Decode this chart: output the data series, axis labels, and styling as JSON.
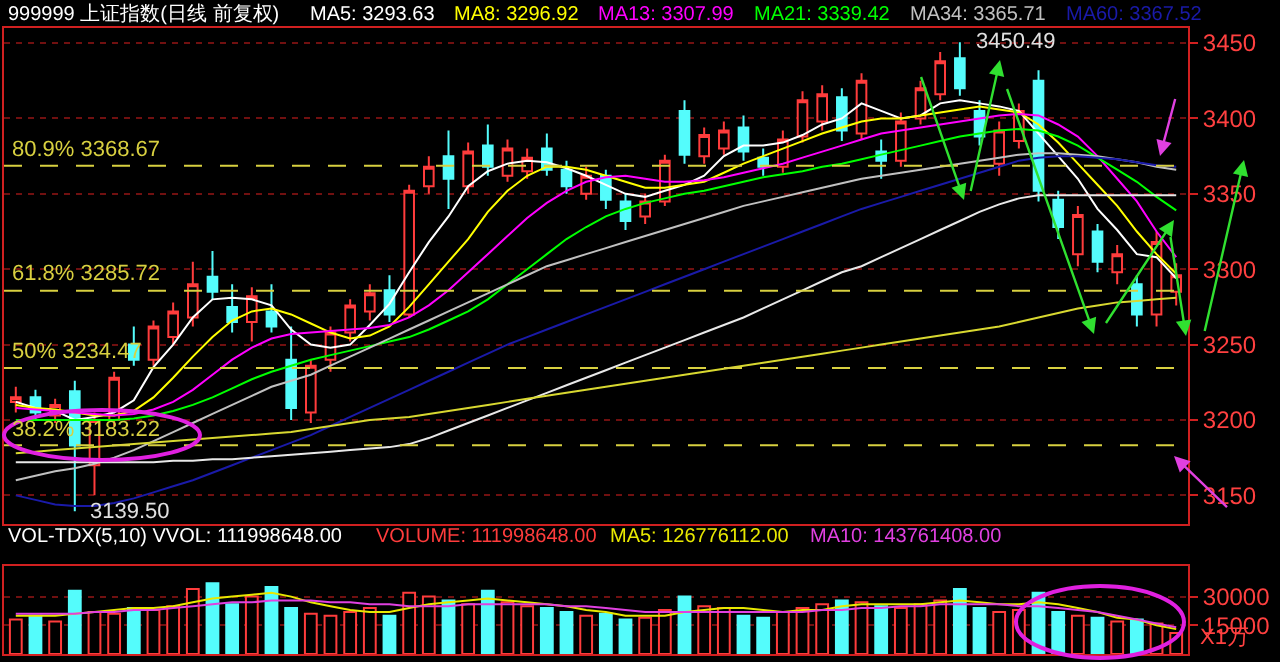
{
  "chart_data": [
    {
      "type": "candlestick",
      "title": "999999 上证指数(日线 前复权)",
      "categories": [
        null,
        null,
        null,
        null,
        null,
        null,
        null,
        null,
        null,
        null,
        null,
        null,
        null,
        null,
        null,
        null,
        null,
        null,
        null,
        null,
        null,
        null,
        null,
        null,
        null,
        null,
        null,
        null,
        null,
        null,
        null,
        null,
        null,
        null,
        null,
        null,
        null,
        null,
        null,
        null,
        null,
        null,
        null,
        null,
        null,
        null,
        null,
        null,
        null,
        null,
        null,
        null,
        null,
        null,
        null,
        null,
        null,
        null,
        null,
        null
      ],
      "ohlc": [
        [
          3212,
          3222,
          3205,
          3215
        ],
        [
          3215,
          3220,
          3200,
          3205
        ],
        [
          3203,
          3214,
          3198,
          3210
        ],
        [
          3219,
          3226,
          3139.5,
          3183
        ],
        [
          3170,
          3205,
          3150,
          3200
        ],
        [
          3200,
          3232,
          3196,
          3228
        ],
        [
          3250,
          3262,
          3236,
          3240
        ],
        [
          3240,
          3266,
          3236,
          3262
        ],
        [
          3255,
          3278,
          3250,
          3272
        ],
        [
          3268,
          3305,
          3262,
          3290
        ],
        [
          3295,
          3312,
          3280,
          3285
        ],
        [
          3275,
          3290,
          3258,
          3265
        ],
        [
          3265,
          3288,
          3252,
          3282
        ],
        [
          3272,
          3290,
          3258,
          3262
        ],
        [
          3240,
          3262,
          3200,
          3208
        ],
        [
          3205,
          3240,
          3198,
          3236
        ],
        [
          3240,
          3262,
          3232,
          3258
        ],
        [
          3258,
          3280,
          3252,
          3276
        ],
        [
          3272,
          3290,
          3266,
          3284
        ],
        [
          3286,
          3296,
          3265,
          3270
        ],
        [
          3270,
          3356,
          3268,
          3352
        ],
        [
          3355,
          3375,
          3350,
          3368
        ],
        [
          3375,
          3392,
          3340,
          3360
        ],
        [
          3355,
          3384,
          3350,
          3378
        ],
        [
          3382,
          3396,
          3362,
          3368
        ],
        [
          3362,
          3386,
          3358,
          3380
        ],
        [
          3365,
          3380,
          3360,
          3374
        ],
        [
          3380,
          3390,
          3362,
          3366
        ],
        [
          3366,
          3372,
          3350,
          3355
        ],
        [
          3350,
          3368,
          3346,
          3362
        ],
        [
          3362,
          3366,
          3340,
          3346
        ],
        [
          3345,
          3350,
          3326,
          3332
        ],
        [
          3335,
          3350,
          3330,
          3345
        ],
        [
          3345,
          3376,
          3342,
          3372
        ],
        [
          3405,
          3412,
          3370,
          3376
        ],
        [
          3375,
          3394,
          3370,
          3389
        ],
        [
          3380,
          3398,
          3376,
          3392
        ],
        [
          3394,
          3402,
          3372,
          3378
        ],
        [
          3374,
          3380,
          3362,
          3368
        ],
        [
          3368,
          3392,
          3364,
          3386
        ],
        [
          3388,
          3418,
          3384,
          3412
        ],
        [
          3398,
          3422,
          3392,
          3416
        ],
        [
          3414,
          3420,
          3385,
          3392
        ],
        [
          3390,
          3430,
          3386,
          3425
        ],
        [
          3378,
          3386,
          3360,
          3372
        ],
        [
          3372,
          3404,
          3368,
          3398
        ],
        [
          3400,
          3425,
          3396,
          3420
        ],
        [
          3416,
          3444,
          3412,
          3438
        ],
        [
          3440,
          3450.49,
          3415,
          3420
        ],
        [
          3405,
          3412,
          3382,
          3388
        ],
        [
          3370,
          3398,
          3362,
          3392
        ],
        [
          3385,
          3410,
          3380,
          3405
        ],
        [
          3425,
          3432,
          3345,
          3352
        ],
        [
          3346,
          3352,
          3320,
          3328
        ],
        [
          3310,
          3342,
          3302,
          3336
        ],
        [
          3325,
          3330,
          3298,
          3305
        ],
        [
          3298,
          3316,
          3290,
          3310
        ],
        [
          3290,
          3296,
          3262,
          3270
        ],
        [
          3270,
          3325,
          3262,
          3318
        ],
        [
          3285,
          3304,
          3276,
          3296
        ]
      ],
      "colors": [
        "#ff3c3c",
        "#54fcfc",
        "#ff3c3c",
        "#54fcfc",
        "#ff3c3c",
        "#ff3c3c",
        "#54fcfc",
        "#ff3c3c",
        "#ff3c3c",
        "#ff3c3c",
        "#54fcfc",
        "#54fcfc",
        "#ff3c3c",
        "#54fcfc",
        "#54fcfc",
        "#ff3c3c",
        "#ff3c3c",
        "#ff3c3c",
        "#ff3c3c",
        "#54fcfc",
        "#ff3c3c",
        "#ff3c3c",
        "#54fcfc",
        "#ff3c3c",
        "#54fcfc",
        "#ff3c3c",
        "#ff3c3c",
        "#54fcfc",
        "#54fcfc",
        "#ff3c3c",
        "#54fcfc",
        "#54fcfc",
        "#ff3c3c",
        "#ff3c3c",
        "#54fcfc",
        "#ff3c3c",
        "#ff3c3c",
        "#54fcfc",
        "#54fcfc",
        "#ff3c3c",
        "#ff3c3c",
        "#ff3c3c",
        "#54fcfc",
        "#ff3c3c",
        "#54fcfc",
        "#ff3c3c",
        "#ff3c3c",
        "#ff3c3c",
        "#54fcfc",
        "#54fcfc",
        "#ff3c3c",
        "#ff3c3c",
        "#54fcfc",
        "#54fcfc",
        "#ff3c3c",
        "#54fcfc",
        "#ff3c3c",
        "#54fcfc",
        "#ff3c3c",
        "#ff3c3c"
      ],
      "series": [
        {
          "name": "MA5: 3293.63",
          "type": "line",
          "color": "#ffffff",
          "values": [
            3212,
            3208,
            3206,
            3200,
            3202,
            3205,
            3213,
            3235,
            3250,
            3268,
            3280,
            3281,
            3280,
            3276,
            3260,
            3250,
            3248,
            3250,
            3263,
            3277,
            3298,
            3318,
            3335,
            3355,
            3365,
            3370,
            3372,
            3371,
            3367,
            3362,
            3356,
            3350,
            3348,
            3352,
            3356,
            3362,
            3375,
            3382,
            3382,
            3384,
            3389,
            3396,
            3400,
            3410,
            3405,
            3400,
            3402,
            3410,
            3412,
            3410,
            3408,
            3405,
            3390,
            3375,
            3360,
            3340,
            3326,
            3310,
            3308,
            3294
          ]
        },
        {
          "name": "MA8: 3296.92",
          "type": "line",
          "color": "#ffff00",
          "values": [
            3210,
            3208,
            3207,
            3205,
            3203,
            3203,
            3206,
            3215,
            3228,
            3242,
            3255,
            3266,
            3272,
            3274,
            3270,
            3264,
            3258,
            3254,
            3256,
            3262,
            3275,
            3290,
            3305,
            3320,
            3338,
            3352,
            3362,
            3368,
            3368,
            3366,
            3362,
            3358,
            3354,
            3354,
            3356,
            3358,
            3364,
            3370,
            3375,
            3380,
            3385,
            3390,
            3394,
            3398,
            3400,
            3400,
            3402,
            3404,
            3406,
            3408,
            3406,
            3404,
            3396,
            3384,
            3370,
            3356,
            3342,
            3325,
            3310,
            3297
          ]
        },
        {
          "name": "MA13: 3307.99",
          "type": "line",
          "color": "#ff00ff",
          "values": [
            3208,
            3207,
            3206,
            3205,
            3204,
            3203,
            3204,
            3207,
            3212,
            3220,
            3230,
            3240,
            3248,
            3254,
            3257,
            3258,
            3259,
            3260,
            3261,
            3263,
            3268,
            3276,
            3286,
            3298,
            3310,
            3322,
            3334,
            3344,
            3352,
            3358,
            3361,
            3362,
            3360,
            3358,
            3358,
            3359,
            3361,
            3364,
            3367,
            3370,
            3374,
            3378,
            3382,
            3386,
            3390,
            3392,
            3394,
            3396,
            3398,
            3400,
            3402,
            3403,
            3402,
            3396,
            3388,
            3375,
            3360,
            3345,
            3325,
            3308
          ]
        },
        {
          "name": "MA21: 3339.42",
          "type": "line",
          "color": "#00ff00",
          "values": [
            3200,
            3200,
            3200,
            3200,
            3200,
            3200,
            3201,
            3203,
            3206,
            3210,
            3215,
            3221,
            3227,
            3232,
            3236,
            3240,
            3243,
            3246,
            3249,
            3252,
            3255,
            3260,
            3266,
            3272,
            3280,
            3290,
            3300,
            3310,
            3320,
            3328,
            3335,
            3340,
            3344,
            3347,
            3350,
            3352,
            3355,
            3358,
            3361,
            3363,
            3365,
            3368,
            3370,
            3373,
            3376,
            3379,
            3382,
            3385,
            3388,
            3390,
            3392,
            3393,
            3392,
            3388,
            3382,
            3374,
            3366,
            3358,
            3348,
            3339
          ]
        },
        {
          "name": "MA34: 3365.71",
          "type": "line",
          "color": "#c0c0c0",
          "values": [
            3160,
            3163,
            3166,
            3168,
            3171,
            3175,
            3180,
            3186,
            3192,
            3198,
            3204,
            3210,
            3216,
            3222,
            3226,
            3230,
            3236,
            3242,
            3248,
            3254,
            3260,
            3266,
            3272,
            3278,
            3284,
            3290,
            3296,
            3302,
            3306,
            3310,
            3314,
            3318,
            3322,
            3326,
            3330,
            3334,
            3338,
            3342,
            3345,
            3348,
            3351,
            3354,
            3357,
            3360,
            3362,
            3364,
            3366,
            3368,
            3370,
            3372,
            3374,
            3376,
            3377,
            3377,
            3376,
            3375,
            3373,
            3371,
            3368,
            3366
          ]
        },
        {
          "name": "MA60: 3367.52",
          "type": "line",
          "color": "#1a1aa8",
          "values": [
            3150,
            3147,
            3144,
            3143,
            3143,
            3145,
            3148,
            3152,
            3156,
            3160,
            3165,
            3170,
            3175,
            3180,
            3185,
            3190,
            3196,
            3202,
            3208,
            3214,
            3220,
            3226,
            3232,
            3238,
            3244,
            3250,
            3255,
            3260,
            3265,
            3270,
            3275,
            3280,
            3285,
            3290,
            3295,
            3300,
            3305,
            3310,
            3315,
            3320,
            3325,
            3330,
            3335,
            3340,
            3344,
            3348,
            3352,
            3356,
            3360,
            3364,
            3368,
            3372,
            3374,
            3375,
            3375,
            3374,
            3373,
            3371,
            3369,
            3368
          ]
        },
        {
          "type": "line",
          "color": "#e8e8e8",
          "values": [
            3172,
            3172,
            3172,
            3172,
            3172,
            3172,
            3172,
            3172,
            3173,
            3173,
            3174,
            3174,
            3175,
            3176,
            3177,
            3178,
            3179,
            3180,
            3181,
            3182,
            3184,
            3188,
            3193,
            3198,
            3203,
            3208,
            3213,
            3218,
            3223,
            3228,
            3233,
            3238,
            3243,
            3248,
            3253,
            3258,
            3263,
            3268,
            3274,
            3280,
            3286,
            3292,
            3298,
            3302,
            3308,
            3314,
            3320,
            3326,
            3332,
            3338,
            3343,
            3347,
            3349,
            3349,
            3349,
            3349,
            3349,
            3349,
            3349,
            3349
          ]
        },
        {
          "type": "line",
          "color": "#d8d830",
          "values": [
            3178,
            3179,
            3180,
            3181,
            3182,
            3183,
            3184,
            3185,
            3186,
            3187,
            3188,
            3189,
            3190,
            3191,
            3192,
            3194,
            3196,
            3198,
            3200,
            3201,
            3202,
            3204,
            3206,
            3208,
            3210,
            3212,
            3214,
            3216,
            3218,
            3220,
            3222,
            3224,
            3226,
            3228,
            3230,
            3232,
            3234,
            3236,
            3238,
            3240,
            3242,
            3244,
            3246,
            3248,
            3250,
            3252,
            3254,
            3256,
            3258,
            3260,
            3262,
            3265,
            3268,
            3271,
            3274,
            3276,
            3278,
            3279,
            3280,
            3281
          ]
        }
      ],
      "ylim": [
        3131,
        3460
      ],
      "yticks": [
        3150,
        3200,
        3250,
        3300,
        3350,
        3400,
        3450
      ],
      "grid": "y",
      "tick_labels": "y",
      "ref_lines": [
        {
          "axis": "y",
          "value": 3368.67,
          "label": "80.9% 3368.67",
          "color": "#d8d040",
          "line_style": "dashed"
        },
        {
          "axis": "y",
          "value": 3285.72,
          "label": "61.8% 3285.72",
          "color": "#d8d040",
          "line_style": "dashed"
        },
        {
          "axis": "y",
          "value": 3234.47,
          "label": "50% 3234.47",
          "color": "#d8d040",
          "line_style": "dashed"
        },
        {
          "axis": "y",
          "value": 3183.22,
          "label": "38.2% 3183.22",
          "color": "#d8d040",
          "line_style": "dashed"
        }
      ],
      "annotations": [
        "3450.49",
        "3139.50"
      ]
    },
    {
      "type": "bar",
      "title": "VOL-TDX(5,10) VVOL: 111998648.00",
      "ylabel": "X1万",
      "categories": [
        null,
        null,
        null,
        null,
        null,
        null,
        null,
        null,
        null,
        null,
        null,
        null,
        null,
        null,
        null,
        null,
        null,
        null,
        null,
        null,
        null,
        null,
        null,
        null,
        null,
        null,
        null,
        null,
        null,
        null,
        null,
        null,
        null,
        null,
        null,
        null,
        null,
        null,
        null,
        null,
        null,
        null,
        null,
        null,
        null,
        null,
        null,
        null,
        null,
        null,
        null,
        null,
        null,
        null,
        null,
        null,
        null,
        null,
        null,
        null
      ],
      "series": [
        {
          "name": "VOLUME: 111998648.00",
          "colors": [
            "#ff3c3c",
            "#54fcfc",
            "#ff3c3c",
            "#54fcfc",
            "#ff3c3c",
            "#ff3c3c",
            "#54fcfc",
            "#ff3c3c",
            "#ff3c3c",
            "#ff3c3c",
            "#54fcfc",
            "#54fcfc",
            "#ff3c3c",
            "#54fcfc",
            "#54fcfc",
            "#ff3c3c",
            "#ff3c3c",
            "#ff3c3c",
            "#ff3c3c",
            "#54fcfc",
            "#ff3c3c",
            "#ff3c3c",
            "#54fcfc",
            "#ff3c3c",
            "#54fcfc",
            "#ff3c3c",
            "#ff3c3c",
            "#54fcfc",
            "#54fcfc",
            "#ff3c3c",
            "#54fcfc",
            "#54fcfc",
            "#ff3c3c",
            "#ff3c3c",
            "#54fcfc",
            "#ff3c3c",
            "#ff3c3c",
            "#54fcfc",
            "#54fcfc",
            "#ff3c3c",
            "#ff3c3c",
            "#ff3c3c",
            "#54fcfc",
            "#ff3c3c",
            "#54fcfc",
            "#ff3c3c",
            "#ff3c3c",
            "#ff3c3c",
            "#54fcfc",
            "#54fcfc",
            "#ff3c3c",
            "#ff3c3c",
            "#54fcfc",
            "#54fcfc",
            "#ff3c3c",
            "#54fcfc",
            "#ff3c3c",
            "#54fcfc",
            "#ff3c3c",
            "#ff3c3c"
          ],
          "values": [
            18000,
            20000,
            17000,
            33000,
            22000,
            21000,
            24000,
            23000,
            25000,
            34000,
            37000,
            26000,
            30000,
            35000,
            24000,
            21000,
            20000,
            22000,
            24000,
            20000,
            32000,
            30000,
            28000,
            26000,
            33000,
            27000,
            25000,
            24000,
            22000,
            20000,
            21000,
            18000,
            19000,
            23000,
            30000,
            25000,
            24000,
            20000,
            19000,
            22000,
            24000,
            26000,
            28000,
            27000,
            25000,
            24000,
            26000,
            28000,
            34000,
            24000,
            22000,
            23000,
            32000,
            22000,
            20000,
            19000,
            17000,
            18000,
            16000,
            11000
          ]
        },
        {
          "name": "MA5: 126776112.00",
          "type": "line",
          "color": "#e8e800",
          "values": [
            20000,
            20000,
            20000,
            21000,
            22000,
            23000,
            24000,
            24000,
            25000,
            27000,
            29000,
            30000,
            31000,
            32000,
            30000,
            27000,
            25000,
            23000,
            22000,
            22000,
            24000,
            26000,
            27000,
            28000,
            29000,
            28000,
            27000,
            26000,
            25000,
            23000,
            22000,
            20000,
            20000,
            20000,
            22000,
            23000,
            24000,
            24000,
            23000,
            22000,
            23000,
            23000,
            25000,
            26000,
            26000,
            26000,
            26000,
            27000,
            28000,
            27000,
            26000,
            26000,
            27000,
            26000,
            24000,
            22000,
            19000,
            18000,
            15000,
            13000
          ]
        },
        {
          "name": "MA10: 143761408.00",
          "type": "line",
          "color": "#e040e0",
          "values": [
            21000,
            21000,
            21000,
            21000,
            22000,
            22000,
            23000,
            23000,
            24000,
            25000,
            26000,
            27000,
            27000,
            28000,
            28000,
            28000,
            27000,
            27000,
            26000,
            26000,
            25000,
            25000,
            25000,
            26000,
            26000,
            26000,
            26000,
            26000,
            25000,
            25000,
            24000,
            23000,
            22000,
            22000,
            22000,
            22000,
            22000,
            22000,
            22000,
            22000,
            22000,
            23000,
            23000,
            24000,
            24000,
            25000,
            25000,
            26000,
            26000,
            26000,
            26000,
            25000,
            25000,
            24000,
            23000,
            22000,
            20000,
            18000,
            16000,
            14000
          ]
        }
      ],
      "ylim": [
        0,
        46000
      ],
      "yticks": [
        15000,
        30000
      ],
      "grid": "y",
      "tick_labels": "y"
    }
  ]
}
